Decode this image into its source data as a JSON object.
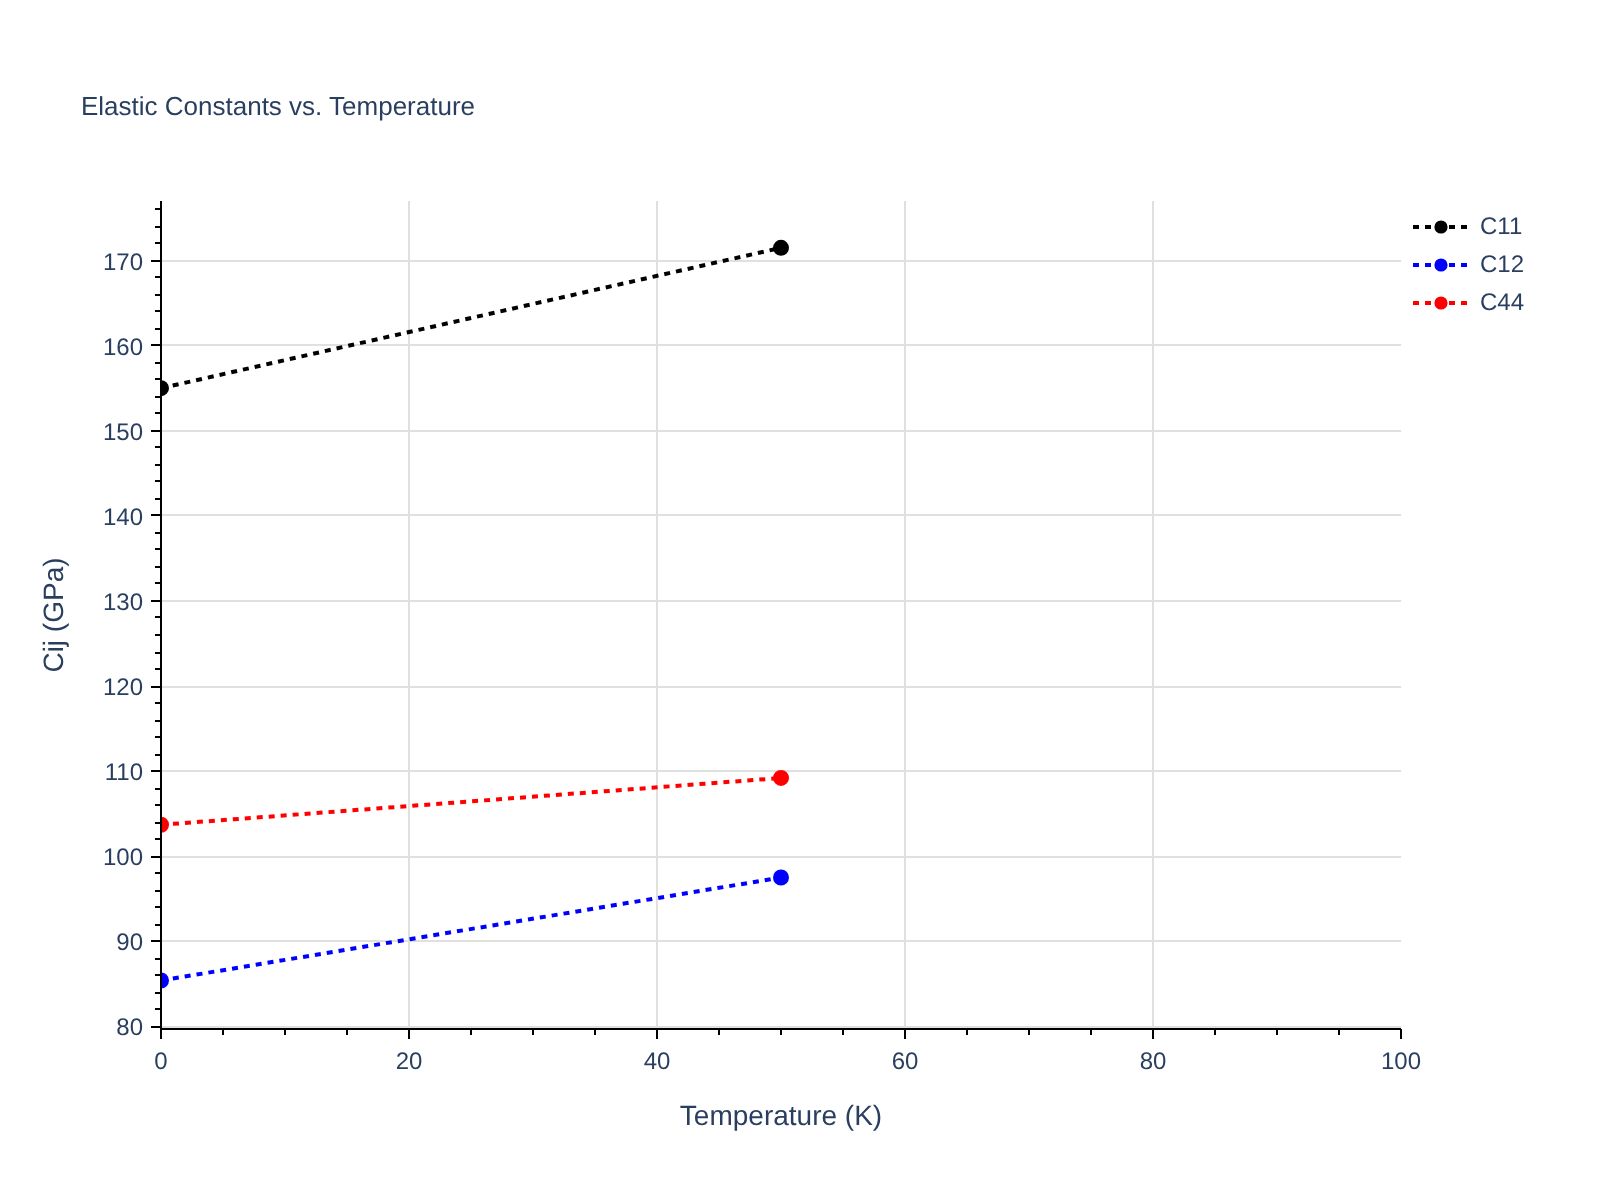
{
  "chart_data": {
    "type": "line",
    "title": "Elastic Constants vs. Temperature",
    "xlabel": "Temperature (K)",
    "ylabel": "Cij (GPa)",
    "x": [
      0,
      50
    ],
    "series": [
      {
        "name": "C11",
        "color": "#000000",
        "values": [
          155.0,
          171.5
        ]
      },
      {
        "name": "C12",
        "color": "#0000ff",
        "values": [
          85.4,
          97.5
        ]
      },
      {
        "name": "C44",
        "color": "#ff0000",
        "values": [
          103.7,
          109.2
        ]
      }
    ],
    "xlim": [
      0,
      100
    ],
    "xticks": [
      0,
      {
        "value": 5,
        "label": null
      },
      {
        "value": 10,
        "label": null
      },
      {
        "value": 15,
        "label": null
      },
      20,
      {
        "value": 25,
        "label": null
      },
      {
        "value": 30,
        "label": null
      },
      {
        "value": 35,
        "label": null
      },
      40,
      {
        "value": 45,
        "label": null
      },
      {
        "value": 50,
        "label": null
      },
      {
        "value": 55,
        "label": null
      },
      60,
      {
        "value": 65,
        "label": null
      },
      {
        "value": 70,
        "label": null
      },
      {
        "value": 75,
        "label": null
      },
      80,
      {
        "value": 85,
        "label": null
      },
      {
        "value": 90,
        "label": null
      },
      {
        "value": 95,
        "label": null
      },
      100
    ],
    "ylim": [
      79.7,
      177
    ],
    "yticks": [
      80,
      {
        "value": 82,
        "label": null
      },
      {
        "value": 84,
        "label": null
      },
      {
        "value": 86,
        "label": null
      },
      {
        "value": 88,
        "label": null
      },
      90,
      {
        "value": 92,
        "label": null
      },
      {
        "value": 94,
        "label": null
      },
      {
        "value": 96,
        "label": null
      },
      {
        "value": 98,
        "label": null
      },
      100,
      {
        "value": 102,
        "label": null
      },
      {
        "value": 104,
        "label": null
      },
      {
        "value": 106,
        "label": null
      },
      {
        "value": 108,
        "label": null
      },
      110,
      {
        "value": 112,
        "label": null
      },
      {
        "value": 114,
        "label": null
      },
      {
        "value": 116,
        "label": null
      },
      {
        "value": 118,
        "label": null
      },
      120,
      {
        "value": 122,
        "label": null
      },
      {
        "value": 124,
        "label": null
      },
      {
        "value": 126,
        "label": null
      },
      {
        "value": 128,
        "label": null
      },
      130,
      {
        "value": 132,
        "label": null
      },
      {
        "value": 134,
        "label": null
      },
      {
        "value": 136,
        "label": null
      },
      {
        "value": 138,
        "label": null
      },
      140,
      {
        "value": 142,
        "label": null
      },
      {
        "value": 144,
        "label": null
      },
      {
        "value": 146,
        "label": null
      },
      {
        "value": 148,
        "label": null
      },
      150,
      {
        "value": 152,
        "label": null
      },
      {
        "value": 154,
        "label": null
      },
      {
        "value": 156,
        "label": null
      },
      {
        "value": 158,
        "label": null
      },
      160,
      {
        "value": 162,
        "label": null
      },
      {
        "value": 164,
        "label": null
      },
      {
        "value": 166,
        "label": null
      },
      {
        "value": 168,
        "label": null
      },
      170,
      {
        "value": 172,
        "label": null
      },
      {
        "value": 174,
        "label": null
      },
      {
        "value": 176,
        "label": null
      }
    ],
    "grid": true,
    "legend": "top right",
    "marker": "circle",
    "line_style": "dotted"
  }
}
